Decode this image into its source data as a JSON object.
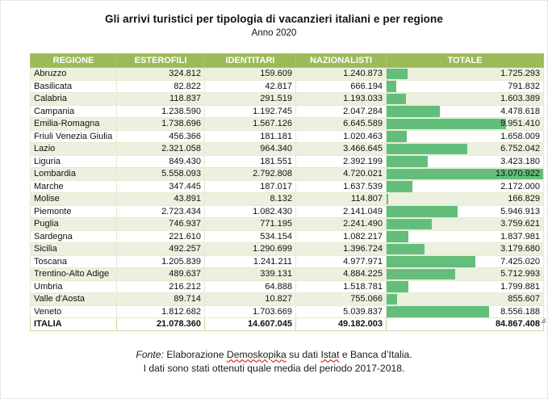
{
  "title": "Gli arrivi turistici per tipologia di vacanzieri italiani e per regione",
  "subtitle": "Anno 2020",
  "colors": {
    "header_bg": "#9bbb59",
    "header_text": "#ffffff",
    "row_alt_bg": "#ebf1de",
    "data_bar": "#63be7b",
    "table_border": "#b9cf92"
  },
  "table": {
    "headers": [
      "REGIONE",
      "ESTEROFILI",
      "IDENTITARI",
      "NAZIONALISTI",
      "TOTALE"
    ],
    "bar_max": 13070922,
    "rows": [
      {
        "region": "Abruzzo",
        "esterofili": "324.812",
        "identitari": "159.609",
        "nazionalisti": "1.240.873",
        "totale": "1.725.293",
        "totale_value": 1725293
      },
      {
        "region": "Basilicata",
        "esterofili": "82.822",
        "identitari": "42.817",
        "nazionalisti": "666.194",
        "totale": "791.832",
        "totale_value": 791832
      },
      {
        "region": "Calabria",
        "esterofili": "118.837",
        "identitari": "291.519",
        "nazionalisti": "1.193.033",
        "totale": "1.603.389",
        "totale_value": 1603389
      },
      {
        "region": "Campania",
        "esterofili": "1.238.590",
        "identitari": "1.192.745",
        "nazionalisti": "2.047.284",
        "totale": "4.478.618",
        "totale_value": 4478618
      },
      {
        "region": "Emilia-Romagna",
        "esterofili": "1.738.696",
        "identitari": "1.567.126",
        "nazionalisti": "6.645.589",
        "totale": "9.951.410",
        "totale_value": 9951410
      },
      {
        "region": "Friuli Venezia Giulia",
        "esterofili": "456.366",
        "identitari": "181.181",
        "nazionalisti": "1.020.463",
        "totale": "1.658.009",
        "totale_value": 1658009
      },
      {
        "region": "Lazio",
        "esterofili": "2.321.058",
        "identitari": "964.340",
        "nazionalisti": "3.466.645",
        "totale": "6.752.042",
        "totale_value": 6752042
      },
      {
        "region": "Liguria",
        "esterofili": "849.430",
        "identitari": "181.551",
        "nazionalisti": "2.392.199",
        "totale": "3.423.180",
        "totale_value": 3423180
      },
      {
        "region": "Lombardia",
        "esterofili": "5.558.093",
        "identitari": "2.792.808",
        "nazionalisti": "4.720.021",
        "totale": "13.070.922",
        "totale_value": 13070922
      },
      {
        "region": "Marche",
        "esterofili": "347.445",
        "identitari": "187.017",
        "nazionalisti": "1.637.539",
        "totale": "2.172.000",
        "totale_value": 2172000
      },
      {
        "region": "Molise",
        "esterofili": "43.891",
        "identitari": "8.132",
        "nazionalisti": "114.807",
        "totale": "166.829",
        "totale_value": 166829
      },
      {
        "region": "Piemonte",
        "esterofili": "2.723.434",
        "identitari": "1.082.430",
        "nazionalisti": "2.141.049",
        "totale": "5.946.913",
        "totale_value": 5946913
      },
      {
        "region": "Puglia",
        "esterofili": "746.937",
        "identitari": "771.195",
        "nazionalisti": "2.241.490",
        "totale": "3.759.621",
        "totale_value": 3759621
      },
      {
        "region": "Sardegna",
        "esterofili": "221.610",
        "identitari": "534.154",
        "nazionalisti": "1.082.217",
        "totale": "1.837.981",
        "totale_value": 1837981
      },
      {
        "region": "Sicilia",
        "esterofili": "492.257",
        "identitari": "1.290.699",
        "nazionalisti": "1.396.724",
        "totale": "3.179.680",
        "totale_value": 3179680
      },
      {
        "region": "Toscana",
        "esterofili": "1.205.839",
        "identitari": "1.241.211",
        "nazionalisti": "4.977.971",
        "totale": "7.425.020",
        "totale_value": 7425020
      },
      {
        "region": "Trentino-Alto Adige",
        "esterofili": "489.637",
        "identitari": "339.131",
        "nazionalisti": "4.884.225",
        "totale": "5.712.993",
        "totale_value": 5712993
      },
      {
        "region": "Umbria",
        "esterofili": "216.212",
        "identitari": "64.888",
        "nazionalisti": "1.518.781",
        "totale": "1.799.881",
        "totale_value": 1799881
      },
      {
        "region": "Valle d'Aosta",
        "esterofili": "89.714",
        "identitari": "10.827",
        "nazionalisti": "755.066",
        "totale": "855.607",
        "totale_value": 855607
      },
      {
        "region": "Veneto",
        "esterofili": "1.812.682",
        "identitari": "1.703.669",
        "nazionalisti": "5.039.837",
        "totale": "8.556.188",
        "totale_value": 8556188
      }
    ],
    "totals_row": {
      "region": "ITALIA",
      "esterofili": "21.078.360",
      "identitari": "14.607.045",
      "nazionalisti": "49.182.003",
      "totale": "84.867.408",
      "totale_value": 84867408,
      "show_bar": false
    }
  },
  "footer": {
    "line1_parts": [
      {
        "text": "Fonte:",
        "style": "italic"
      },
      {
        "text": " Elaborazione "
      },
      {
        "text": "Demoskopika",
        "style": "misspell"
      },
      {
        "text": " su dati "
      },
      {
        "text": "Istat",
        "style": "misspell"
      },
      {
        "text": " e Banca d’Italia."
      }
    ],
    "line2": "I dati sono stati ottenuti quale media del periodo 2017-2018."
  },
  "chart_data": {
    "type": "table",
    "title": "Gli arrivi turistici per tipologia di vacanzieri italiani e per regione",
    "subtitle": "Anno 2020",
    "categories": [
      "Abruzzo",
      "Basilicata",
      "Calabria",
      "Campania",
      "Emilia-Romagna",
      "Friuli Venezia Giulia",
      "Lazio",
      "Liguria",
      "Lombardia",
      "Marche",
      "Molise",
      "Piemonte",
      "Puglia",
      "Sardegna",
      "Sicilia",
      "Toscana",
      "Trentino-Alto Adige",
      "Umbria",
      "Valle d'Aosta",
      "Veneto"
    ],
    "series": [
      {
        "name": "Esterofili",
        "values": [
          324812,
          82822,
          118837,
          1238590,
          1738696,
          456366,
          2321058,
          849430,
          5558093,
          347445,
          43891,
          2723434,
          746937,
          221610,
          492257,
          1205839,
          489637,
          216212,
          89714,
          1812682
        ]
      },
      {
        "name": "Identitari",
        "values": [
          159609,
          42817,
          291519,
          1192745,
          1567126,
          181181,
          964340,
          181551,
          2792808,
          187017,
          8132,
          1082430,
          771195,
          534154,
          1290699,
          1241211,
          339131,
          64888,
          10827,
          1703669
        ]
      },
      {
        "name": "Nazionalisti",
        "values": [
          1240873,
          666194,
          1193033,
          2047284,
          6645589,
          1020463,
          3466645,
          2392199,
          4720021,
          1637539,
          114807,
          2141049,
          2241490,
          1082217,
          1396724,
          4977971,
          4884225,
          1518781,
          755066,
          5039837
        ]
      },
      {
        "name": "Totale",
        "values": [
          1725293,
          791832,
          1603389,
          4478618,
          9951410,
          1658009,
          6752042,
          3423180,
          13070922,
          2172000,
          166829,
          5946913,
          3759621,
          1837981,
          3179680,
          7425020,
          5712993,
          1799881,
          855607,
          8556188
        ]
      }
    ],
    "totals": {
      "name": "ITALIA",
      "values": [
        21078360,
        14607045,
        49182003,
        84867408
      ]
    },
    "layout_hints": {
      "bar_column": "Totale",
      "bar_scale": "proportional to value, max = Lombardia 13070922",
      "alternating_rows": true
    }
  }
}
